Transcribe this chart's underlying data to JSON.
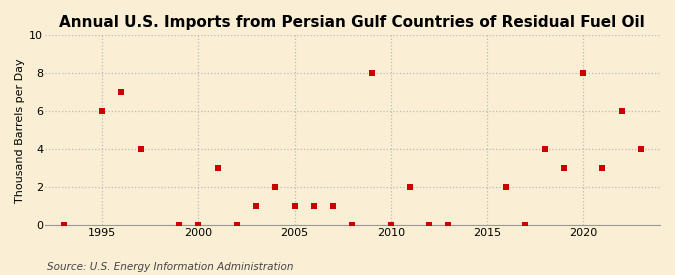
{
  "title": "Annual U.S. Imports from Persian Gulf Countries of Residual Fuel Oil",
  "ylabel": "Thousand Barrels per Day",
  "source": "Source: U.S. Energy Information Administration",
  "years": [
    1993,
    1995,
    1996,
    1997,
    1999,
    2000,
    2001,
    2002,
    2003,
    2004,
    2005,
    2006,
    2007,
    2008,
    2009,
    2010,
    2011,
    2012,
    2013,
    2016,
    2017,
    2018,
    2019,
    2020,
    2021,
    2022,
    2023
  ],
  "values": [
    0,
    6,
    7,
    4,
    0,
    0,
    3,
    0,
    1,
    2,
    1,
    1,
    1,
    0,
    8,
    0,
    2,
    0,
    0,
    2,
    0,
    4,
    3,
    8,
    3,
    6,
    4
  ],
  "marker_color": "#cc0000",
  "marker_size": 25,
  "background_color": "#faefd4",
  "plot_bg_color": "#faefd4",
  "grid_color": "#bbbbbb",
  "ylim": [
    0,
    10
  ],
  "xlim": [
    1992,
    2024
  ],
  "yticks": [
    0,
    2,
    4,
    6,
    8,
    10
  ],
  "xticks": [
    1995,
    2000,
    2005,
    2010,
    2015,
    2020
  ],
  "title_fontsize": 11,
  "ylabel_fontsize": 8,
  "tick_fontsize": 8,
  "source_fontsize": 7.5
}
